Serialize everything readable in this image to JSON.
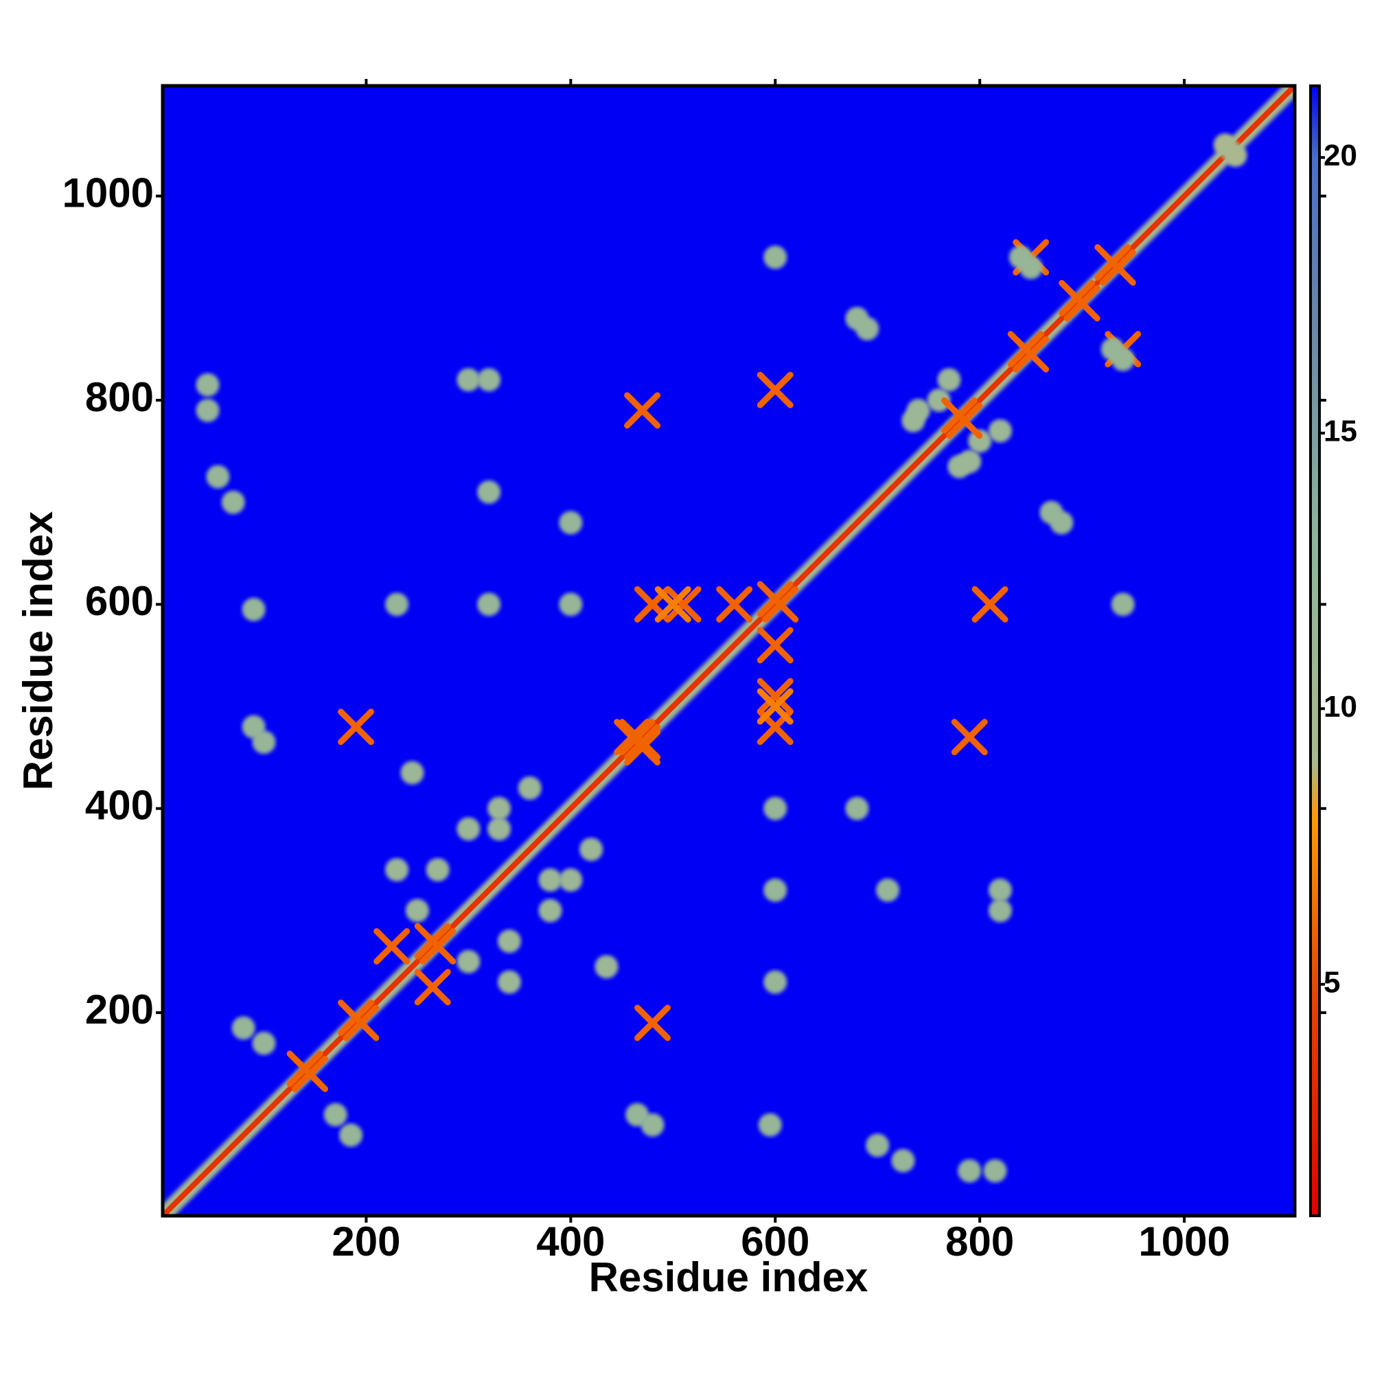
{
  "chart_data": {
    "type": "contact_map",
    "xlabel": "Residue index",
    "ylabel": "Residue index",
    "xlim": [
      1,
      1108
    ],
    "ylim": [
      1,
      1108
    ],
    "xticks": [
      200,
      400,
      600,
      800,
      1000
    ],
    "yticks": [
      200,
      400,
      600,
      800,
      1000
    ],
    "clim": [
      0.8,
      21.3
    ],
    "cticks": [
      5,
      10,
      15,
      20
    ],
    "colorscale": {
      "values": [
        0.8,
        5,
        8,
        9,
        13,
        17,
        20,
        21.3
      ],
      "colors": [
        "#e00000",
        "#e84800",
        "#ff9900",
        "#a9b88f",
        "#8fb59a",
        "#6a86a8",
        "#4a6fc4",
        "#0000f5"
      ]
    },
    "background_value": 21.3,
    "diagonal_values": [
      10,
      3.8
    ],
    "contacts": {
      "x": [
        45,
        45,
        55,
        70,
        90,
        90,
        100,
        80,
        100,
        230,
        250,
        270,
        300,
        330,
        360,
        330,
        225,
        190,
        230,
        320,
        320,
        320,
        400,
        400,
        480,
        510,
        560,
        460,
        470,
        600,
        500,
        680,
        735,
        760,
        770,
        740,
        600,
        850,
        850,
        690,
        840,
        300,
        1040,
        245,
        140,
        190,
        265,
        465,
        600,
        780,
        845,
        895,
        930
      ],
      "y": [
        815,
        790,
        725,
        700,
        595,
        480,
        465,
        185,
        170,
        340,
        300,
        340,
        380,
        400,
        420,
        380,
        265,
        480,
        600,
        600,
        820,
        710,
        680,
        600,
        600,
        600,
        600,
        470,
        790,
        810,
        600,
        880,
        780,
        800,
        820,
        790,
        940,
        940,
        930,
        870,
        940,
        820,
        1050,
        435,
        145,
        195,
        270,
        470,
        605,
        785,
        850,
        900,
        935
      ],
      "values": [
        12,
        12,
        12,
        12,
        12,
        12,
        12,
        12,
        12,
        11,
        11,
        11,
        11,
        11,
        11,
        11,
        6,
        6,
        12,
        12,
        12,
        12,
        12,
        12,
        6,
        6,
        6,
        6,
        6,
        6,
        7,
        12,
        11,
        11,
        11,
        11,
        12,
        6,
        12,
        12,
        12,
        12,
        9,
        11,
        6,
        6,
        6,
        6,
        6,
        6,
        6,
        6,
        6
      ]
    }
  }
}
